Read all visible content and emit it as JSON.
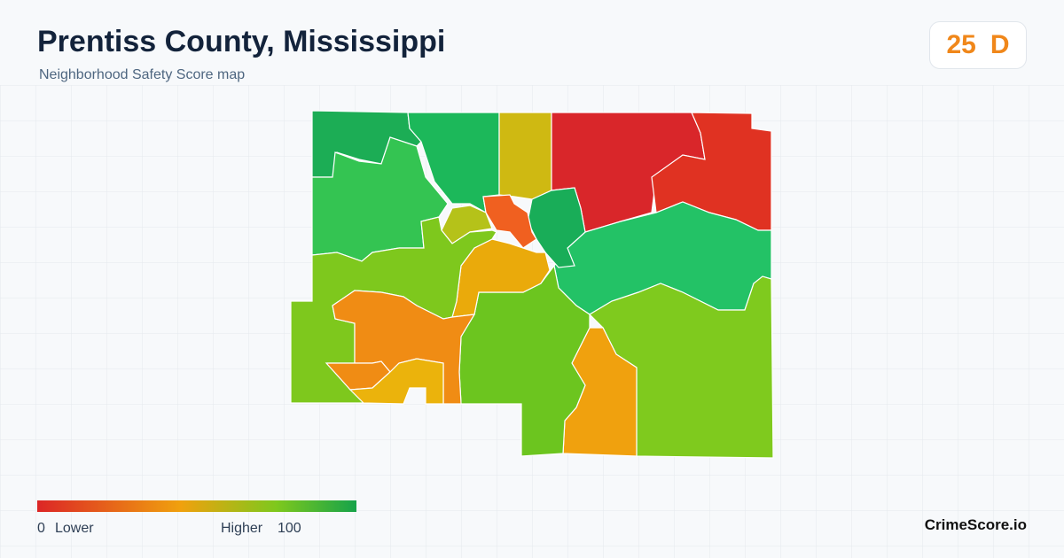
{
  "header": {
    "title": "Prentiss County, Mississippi",
    "subtitle": "Neighborhood Safety Score map"
  },
  "score": {
    "value": "25",
    "grade": "D"
  },
  "legend": {
    "min": "0",
    "low_label": "Lower",
    "high_label": "Higher",
    "max": "100"
  },
  "footer": {
    "brand": "CrimeScore.io"
  }
}
